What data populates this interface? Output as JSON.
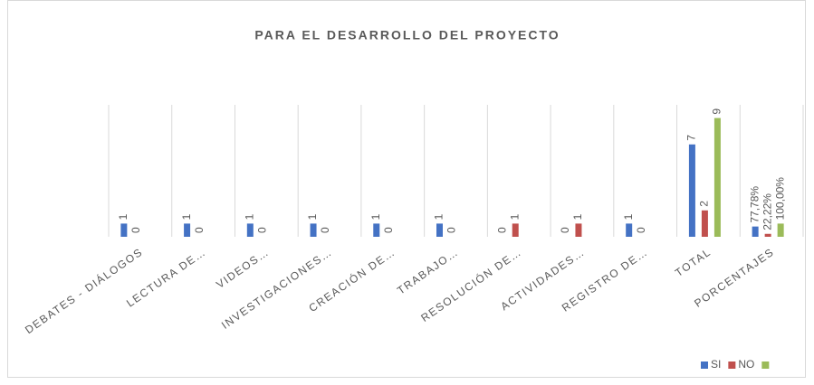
{
  "chart_data": {
    "type": "bar",
    "title": "PARA EL DESARROLLO DEL PROYECTO",
    "categories": [
      "DEBATES - DIÁLOGOS",
      "LECTURA DE…",
      "VIDEOS…",
      "INVESTIGACIONES…",
      "CREACIÓN DE…",
      "TRABAJO…",
      "RESOLUCIÓN DE…",
      "ACTIVIDADES…",
      "REGISTRO DE…",
      "TOTAL",
      "PORCENTAJES"
    ],
    "series": [
      {
        "name": "SI",
        "color": "#4472c4",
        "values": [
          1,
          1,
          1,
          1,
          1,
          1,
          0,
          0,
          1,
          7,
          0.7778
        ],
        "value_labels": [
          null,
          null,
          null,
          null,
          null,
          null,
          null,
          null,
          null,
          null,
          "77,78%"
        ]
      },
      {
        "name": "NO",
        "color": "#c0504d",
        "values": [
          0,
          0,
          0,
          0,
          0,
          0,
          1,
          1,
          0,
          2,
          0.2222
        ],
        "value_labels": [
          null,
          null,
          null,
          null,
          null,
          null,
          null,
          null,
          null,
          null,
          "22,22%"
        ]
      },
      {
        "color": "#9bbb59",
        "values": [
          null,
          null,
          null,
          null,
          null,
          null,
          null,
          null,
          null,
          9,
          1
        ],
        "value_labels": [
          null,
          null,
          null,
          null,
          null,
          null,
          null,
          null,
          null,
          null,
          "100,00%"
        ]
      }
    ],
    "ylim": [
      0,
      10
    ],
    "legend": "bottom-right"
  }
}
